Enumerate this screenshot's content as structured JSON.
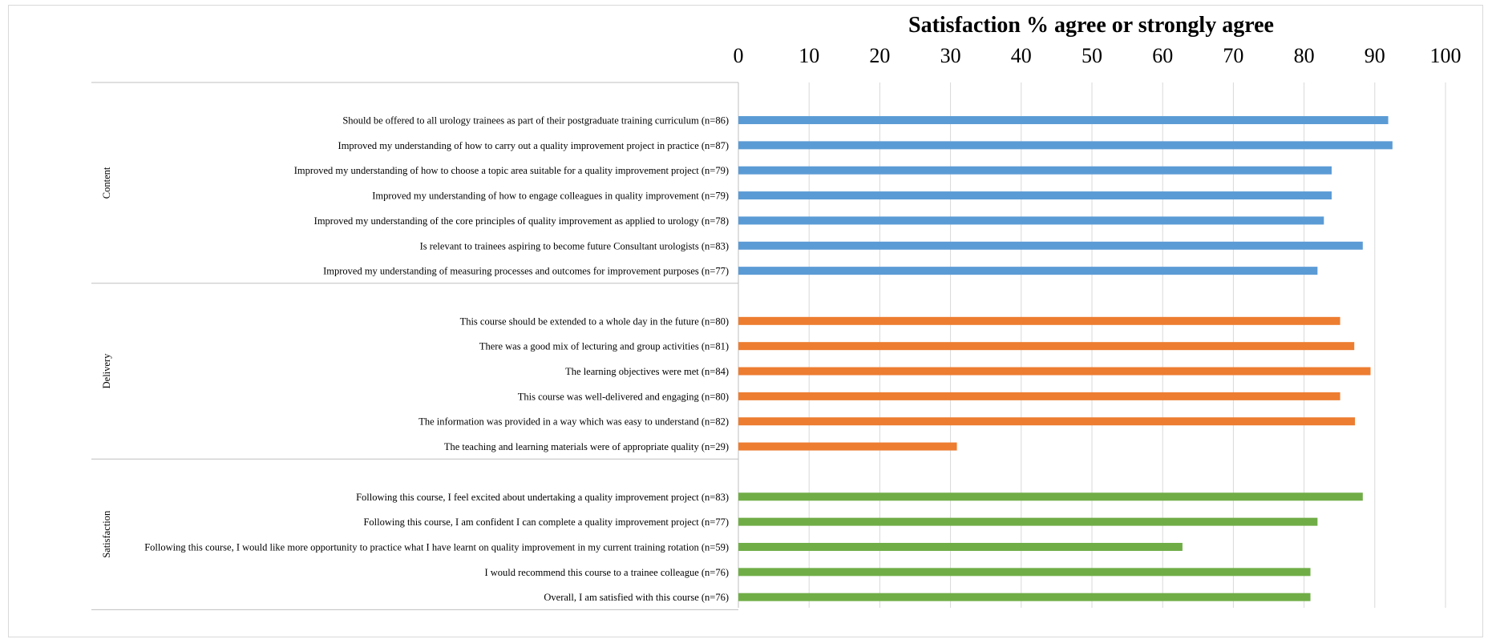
{
  "chart_data": {
    "type": "bar",
    "orientation": "horizontal",
    "title": "Satisfaction % agree or strongly agree",
    "xlim": [
      0,
      100
    ],
    "x_ticks": [
      "0",
      "10",
      "20",
      "30",
      "40",
      "50",
      "60",
      "70",
      "80",
      "90",
      "100"
    ],
    "grid": true,
    "groups": [
      {
        "name": "Content",
        "color": "#5b9bd5",
        "items": [
          {
            "label": "Should be offered to all urology trainees as part of their postgraduate training curriculum (n=86)",
            "value": 91.9
          },
          {
            "label": "Improved my understanding of how to carry out a quality improvement project in practice (n=87)",
            "value": 92.5
          },
          {
            "label": "Improved my understanding of how to choose a topic area suitable for a quality improvement project (n=79)",
            "value": 83.9
          },
          {
            "label": "Improved my understanding of how to engage colleagues in quality improvement (n=79)",
            "value": 83.9
          },
          {
            "label": "Improved my understanding of the core principles of quality improvement as applied to urology (n=78)",
            "value": 82.8
          },
          {
            "label": "Is relevant to trainees aspiring to become future Consultant urologists (n=83)",
            "value": 88.3
          },
          {
            "label": "Improved my understanding of measuring processes and outcomes for improvement purposes (n=77)",
            "value": 81.9
          }
        ]
      },
      {
        "name": "Delivery",
        "color": "#ed7d31",
        "items": [
          {
            "label": "This course should be extended to a whole day in the future (n=80)",
            "value": 85.1
          },
          {
            "label": "There was a good mix of lecturing and group activities (n=81)",
            "value": 87.1
          },
          {
            "label": "The learning objectives were met (n=84)",
            "value": 89.4
          },
          {
            "label": "This course was well-delivered and engaging (n=80)",
            "value": 85.1
          },
          {
            "label": "The information was provided in a way which was easy to understand (n=82)",
            "value": 87.2
          },
          {
            "label": "The teaching and learning materials were of appropriate quality (n=29)",
            "value": 30.9
          }
        ]
      },
      {
        "name": "Satisfaction",
        "color": "#70ad47",
        "items": [
          {
            "label": "Following this course, I feel excited about undertaking a quality improvement project (n=83)",
            "value": 88.3
          },
          {
            "label": "Following this course, I am confident I can complete a quality improvement project (n=77)",
            "value": 81.9
          },
          {
            "label": "Following this course, I would like more opportunity to practice what I have learnt on quality improvement in my current training rotation (n=59)",
            "value": 62.8
          },
          {
            "label": "I would recommend this course to a trainee colleague (n=76)",
            "value": 80.9
          },
          {
            "label": "Overall, I am satisfied with this course (n=76)",
            "value": 80.9
          }
        ]
      }
    ]
  }
}
